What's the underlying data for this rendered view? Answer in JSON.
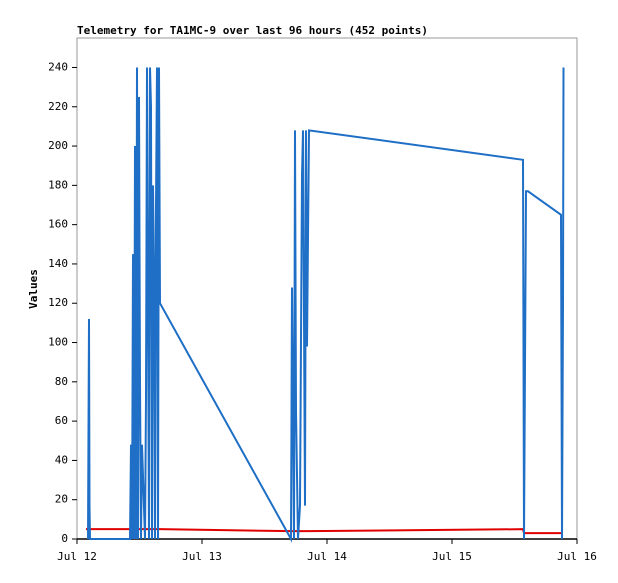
{
  "chart_data": {
    "type": "line",
    "title": "Telemetry for TA1MC-9 over last 96 hours (452 points)",
    "ylabel": "Values",
    "xlim": [
      12,
      16
    ],
    "xticks": [
      {
        "value": 12,
        "label": "Jul 12"
      },
      {
        "value": 13,
        "label": "Jul 13"
      },
      {
        "value": 14,
        "label": "Jul 14"
      },
      {
        "value": 15,
        "label": "Jul 15"
      },
      {
        "value": 16,
        "label": "Jul 16"
      }
    ],
    "ylim": [
      0,
      255
    ],
    "yticks": [
      0,
      20,
      40,
      60,
      80,
      100,
      120,
      140,
      160,
      180,
      200,
      220,
      240
    ],
    "series": [
      {
        "color": "#e00000",
        "x": [
          12.072,
          12.664,
          13.712,
          13.856,
          15.568,
          15.576,
          15.888
        ],
        "values": [
          5,
          5,
          4,
          4,
          5,
          3,
          3
        ]
      },
      {
        "color": "#1f6fc6",
        "x": [
          12.088,
          12.096,
          12.1,
          12.104,
          12.424,
          12.432,
          12.44,
          12.448,
          12.456,
          12.464,
          12.472,
          12.48,
          12.488,
          12.496,
          12.504,
          12.512,
          12.52,
          12.544,
          12.552,
          12.56,
          12.576,
          12.584,
          12.592,
          12.6,
          12.608,
          12.616,
          12.624,
          12.632,
          12.64,
          12.648,
          12.656,
          12.664,
          13.712,
          13.72,
          13.728,
          13.736,
          13.744,
          13.752,
          13.768,
          13.784,
          13.8,
          13.808,
          13.824,
          13.832,
          13.84,
          13.856,
          15.568,
          15.576,
          15.592,
          15.608,
          15.872,
          15.88,
          15.888,
          15.892
        ],
        "values": [
          0,
          112,
          17,
          0,
          0,
          48,
          0,
          145,
          0,
          200,
          0,
          240,
          0,
          225,
          80,
          0,
          48,
          0,
          72,
          240,
          0,
          240,
          220,
          0,
          180,
          135,
          0,
          170,
          240,
          0,
          240,
          120,
          0,
          128,
          65,
          0,
          208,
          65,
          0,
          17,
          185,
          208,
          17,
          208,
          98,
          208,
          193,
          0,
          177,
          177,
          165,
          0,
          120,
          240
        ]
      }
    ]
  }
}
